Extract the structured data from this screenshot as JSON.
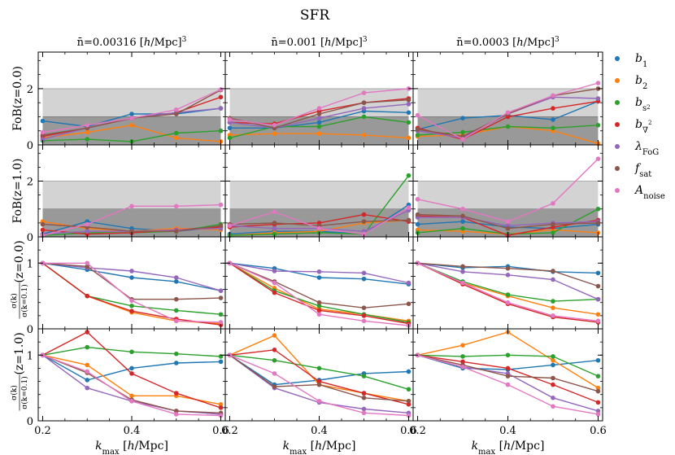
{
  "chart_data": {
    "type": "line",
    "title": "SFR",
    "xlabel": "k_max [h/Mpc]",
    "xlabel_parts": {
      "k": "k",
      "sub": "max",
      "rest": " [",
      "h": "h",
      "tail": "/Mpc]"
    },
    "x": [
      0.2,
      0.3,
      0.4,
      0.5,
      0.6
    ],
    "xlim": [
      0.19,
      0.61
    ],
    "xticks": [
      0.2,
      0.4,
      0.6
    ],
    "xtick_labels": [
      "0.2",
      "0.4",
      "0.6"
    ],
    "columns": [
      {
        "prefix": "n̄=0.00316 [",
        "h": "h",
        "suffix": "/Mpc]",
        "sup": "3"
      },
      {
        "prefix": "n̄=0.001 [",
        "h": "h",
        "suffix": "/Mpc]",
        "sup": "3"
      },
      {
        "prefix": "n̄=0.0003 [",
        "h": "h",
        "suffix": "/Mpc]",
        "sup": "3"
      }
    ],
    "row_labels": [
      {
        "text": "FoB(z=0.0)",
        "kind": "fob"
      },
      {
        "text": "FoB(z=1.0)",
        "kind": "fob"
      },
      {
        "text": "σ(k)/σ(k=0.1) (z=0.0)",
        "kind": "ratio",
        "num": "σ(k)",
        "den": "σ(k=0.1)",
        "z": "(z=0.0)"
      },
      {
        "text": "σ(k)/σ(k=0.1) (z=1.0)",
        "kind": "ratio",
        "num": "σ(k)",
        "den": "σ(k=0.1)",
        "z": "(z=1.0)"
      }
    ],
    "row_ylims": [
      [
        0,
        3.3
      ],
      [
        0,
        3.3
      ],
      [
        0,
        1.4
      ],
      [
        0,
        1.4
      ]
    ],
    "row_yticks": [
      [
        0,
        2
      ],
      [
        0,
        2
      ],
      [
        0,
        1
      ],
      [
        0,
        1
      ]
    ],
    "row_ytick_labels": [
      [
        "0",
        "2"
      ],
      [
        "0",
        "2"
      ],
      [
        "0",
        "1"
      ],
      [
        "0",
        "1"
      ]
    ],
    "bands": [
      {
        "from": 0,
        "to": 1,
        "color": "#999999",
        "label": "FoB < 1"
      },
      {
        "from": 1,
        "to": 2,
        "color": "#d3d3d3",
        "label": "FoB < 2"
      }
    ],
    "legend_position": "right",
    "series": [
      {
        "name": "b1",
        "sym": "b",
        "sub": "1",
        "color": "#1f77b4"
      },
      {
        "name": "b2",
        "sym": "b",
        "sub": "2",
        "color": "#ff7f0e"
      },
      {
        "name": "b_s2",
        "sym": "b",
        "sub": "s",
        "subsub": "2",
        "color": "#2ca02c"
      },
      {
        "name": "b_∇2",
        "sym": "b",
        "sub": "∇",
        "subsup": "2",
        "color": "#d62728"
      },
      {
        "name": "λ_FoG",
        "sym": "λ",
        "sub": "FoG",
        "color": "#9467bd"
      },
      {
        "name": "f_sat",
        "sym": "f",
        "sub": "sat",
        "color": "#8c564b"
      },
      {
        "name": "A_noise",
        "sym": "A",
        "sub": "noise",
        "color": "#e377c2"
      }
    ],
    "panels": [
      [
        {
          "b1": [
            0.85,
            0.65,
            1.1,
            1.1,
            1.3
          ],
          "b2": [
            0.25,
            0.45,
            0.7,
            0.25,
            0.12
          ],
          "b_s2": [
            0.15,
            0.2,
            0.12,
            0.42,
            0.5
          ],
          "b_∇2": [
            0.3,
            0.6,
            0.95,
            1.15,
            1.7
          ],
          "λ_FoG": [
            0.2,
            0.6,
            0.95,
            1.15,
            1.3
          ],
          "f_sat": [
            0.35,
            0.6,
            0.95,
            1.1,
            1.95
          ],
          "A_noise": [
            0.45,
            0.7,
            0.95,
            1.25,
            1.97
          ]
        },
        {
          "b1": [
            0.6,
            0.6,
            0.8,
            1.2,
            1.15
          ],
          "b2": [
            0.35,
            0.4,
            0.4,
            0.35,
            0.25
          ],
          "b_s2": [
            0.25,
            0.65,
            0.65,
            1.0,
            0.8
          ],
          "b_∇2": [
            0.8,
            0.75,
            1.2,
            1.5,
            1.65
          ],
          "λ_FoG": [
            0.8,
            0.6,
            0.95,
            1.3,
            1.45
          ],
          "f_sat": [
            0.95,
            0.6,
            1.1,
            1.5,
            1.6
          ],
          "A_noise": [
            0.9,
            0.7,
            1.3,
            1.85,
            2.0
          ]
        },
        {
          "b1": [
            0.55,
            0.95,
            1.05,
            0.9,
            1.55
          ],
          "b2": [
            0.3,
            0.35,
            0.65,
            0.5,
            0.05
          ],
          "b_s2": [
            0.35,
            0.45,
            0.65,
            0.6,
            0.7
          ],
          "b_∇2": [
            0.6,
            0.2,
            1.0,
            1.3,
            1.55
          ],
          "λ_FoG": [
            0.5,
            0.25,
            1.1,
            1.7,
            1.65
          ],
          "f_sat": [
            0.55,
            0.3,
            1.1,
            1.75,
            2.0
          ],
          "A_noise": [
            1.05,
            0.2,
            1.15,
            1.75,
            2.2
          ]
        }
      ],
      [
        {
          "b1": [
            0.1,
            0.55,
            0.3,
            0.2,
            0.35
          ],
          "b2": [
            0.55,
            0.3,
            0.2,
            0.3,
            0.25
          ],
          "b_s2": [
            0.05,
            0.15,
            0.15,
            0.2,
            0.45
          ],
          "b_∇2": [
            0.25,
            0.1,
            0.15,
            0.25,
            0.35
          ],
          "λ_FoG": [
            0.1,
            0.2,
            0.2,
            0.25,
            0.3
          ],
          "f_sat": [
            0.45,
            0.35,
            0.2,
            0.2,
            0.4
          ],
          "A_noise": [
            0.05,
            0.45,
            1.1,
            1.1,
            1.15
          ]
        },
        {
          "b1": [
            0.1,
            0.2,
            0.2,
            0.1,
            1.15
          ],
          "b2": [
            0.05,
            0.15,
            0.2,
            0.5,
            0.6
          ],
          "b_s2": [
            0.05,
            0.1,
            0.15,
            0.1,
            2.2
          ],
          "b_∇2": [
            0.35,
            0.45,
            0.5,
            0.8,
            0.55
          ],
          "λ_FoG": [
            0.4,
            0.3,
            0.3,
            0.2,
            0.95
          ],
          "f_sat": [
            0.45,
            0.5,
            0.4,
            0.55,
            0.6
          ],
          "A_noise": [
            0.4,
            0.9,
            0.3,
            0.1,
            1.05
          ]
        },
        {
          "b1": [
            0.45,
            0.55,
            0.35,
            0.3,
            0.45
          ],
          "b2": [
            0.25,
            0.2,
            0.1,
            0.25,
            0.15
          ],
          "b_s2": [
            0.15,
            0.3,
            0.1,
            0.15,
            1.0
          ],
          "b_∇2": [
            0.75,
            0.7,
            0.05,
            0.35,
            0.6
          ],
          "λ_FoG": [
            0.7,
            0.7,
            0.4,
            0.5,
            0.55
          ],
          "f_sat": [
            0.8,
            0.75,
            0.3,
            0.45,
            0.5
          ],
          "A_noise": [
            1.35,
            1.0,
            0.55,
            1.2,
            2.8
          ]
        }
      ],
      [
        {
          "b1": [
            1.0,
            0.9,
            0.78,
            0.72,
            0.58
          ],
          "b2": [
            1.0,
            0.5,
            0.25,
            0.12,
            0.08
          ],
          "b_s2": [
            1.0,
            0.5,
            0.35,
            0.28,
            0.22
          ],
          "b_∇2": [
            1.0,
            0.5,
            0.27,
            0.15,
            0.06
          ],
          "λ_FoG": [
            1.0,
            0.93,
            0.88,
            0.78,
            0.58
          ],
          "f_sat": [
            1.0,
            0.95,
            0.45,
            0.45,
            0.47
          ],
          "A_noise": [
            1.0,
            1.0,
            0.43,
            0.12,
            0.1
          ]
        },
        {
          "b1": [
            1.0,
            0.92,
            0.78,
            0.76,
            0.68
          ],
          "b2": [
            1.0,
            0.62,
            0.3,
            0.22,
            0.12
          ],
          "b_s2": [
            1.0,
            0.58,
            0.35,
            0.22,
            0.1
          ],
          "b_∇2": [
            1.0,
            0.55,
            0.28,
            0.2,
            0.08
          ],
          "λ_FoG": [
            1.0,
            0.88,
            0.87,
            0.85,
            0.7
          ],
          "f_sat": [
            1.0,
            0.72,
            0.4,
            0.32,
            0.38
          ],
          "A_noise": [
            1.0,
            0.7,
            0.22,
            0.12,
            0.05
          ]
        },
        {
          "b1": [
            1.0,
            0.93,
            0.95,
            0.87,
            0.85
          ],
          "b2": [
            1.0,
            0.7,
            0.5,
            0.32,
            0.22
          ],
          "b_s2": [
            1.0,
            0.72,
            0.52,
            0.42,
            0.45
          ],
          "b_∇2": [
            1.0,
            0.68,
            0.38,
            0.18,
            0.1
          ],
          "λ_FoG": [
            1.0,
            0.87,
            0.82,
            0.75,
            0.45
          ],
          "f_sat": [
            1.0,
            0.95,
            0.92,
            0.88,
            0.65
          ],
          "A_noise": [
            1.0,
            0.7,
            0.4,
            0.2,
            0.12
          ]
        }
      ],
      [
        {
          "b1": [
            1.0,
            0.62,
            0.8,
            0.88,
            0.9
          ],
          "b2": [
            1.0,
            0.85,
            0.38,
            0.38,
            0.25
          ],
          "b_s2": [
            1.0,
            1.12,
            1.05,
            1.02,
            0.98
          ],
          "b_∇2": [
            1.0,
            1.35,
            0.72,
            0.42,
            0.2
          ],
          "λ_FoG": [
            1.0,
            0.5,
            0.3,
            0.15,
            0.1
          ],
          "f_sat": [
            1.0,
            0.73,
            0.32,
            0.15,
            0.12
          ],
          "A_noise": [
            1.0,
            0.75,
            0.3,
            0.1,
            0.08
          ]
        },
        {
          "b1": [
            1.0,
            0.55,
            0.62,
            0.72,
            0.75
          ],
          "b2": [
            1.0,
            1.3,
            0.55,
            0.42,
            0.3
          ],
          "b_s2": [
            1.0,
            0.92,
            0.8,
            0.68,
            0.48
          ],
          "b_∇2": [
            1.0,
            1.08,
            0.6,
            0.42,
            0.25
          ],
          "λ_FoG": [
            1.0,
            0.5,
            0.28,
            0.18,
            0.12
          ],
          "f_sat": [
            1.0,
            0.52,
            0.55,
            0.35,
            0.3
          ],
          "A_noise": [
            1.0,
            0.72,
            0.3,
            0.12,
            0.08
          ]
        },
        {
          "b1": [
            1.0,
            0.8,
            0.78,
            0.85,
            0.92
          ],
          "b2": [
            1.0,
            1.15,
            1.35,
            0.92,
            0.5
          ],
          "b_s2": [
            1.0,
            0.98,
            1.0,
            0.98,
            0.68
          ],
          "b_∇2": [
            1.0,
            0.9,
            0.8,
            0.55,
            0.28
          ],
          "λ_FoG": [
            1.0,
            0.82,
            0.72,
            0.35,
            0.15
          ],
          "f_sat": [
            1.0,
            0.85,
            0.68,
            0.65,
            0.45
          ],
          "A_noise": [
            1.0,
            0.82,
            0.55,
            0.22,
            0.1
          ]
        }
      ]
    ]
  }
}
